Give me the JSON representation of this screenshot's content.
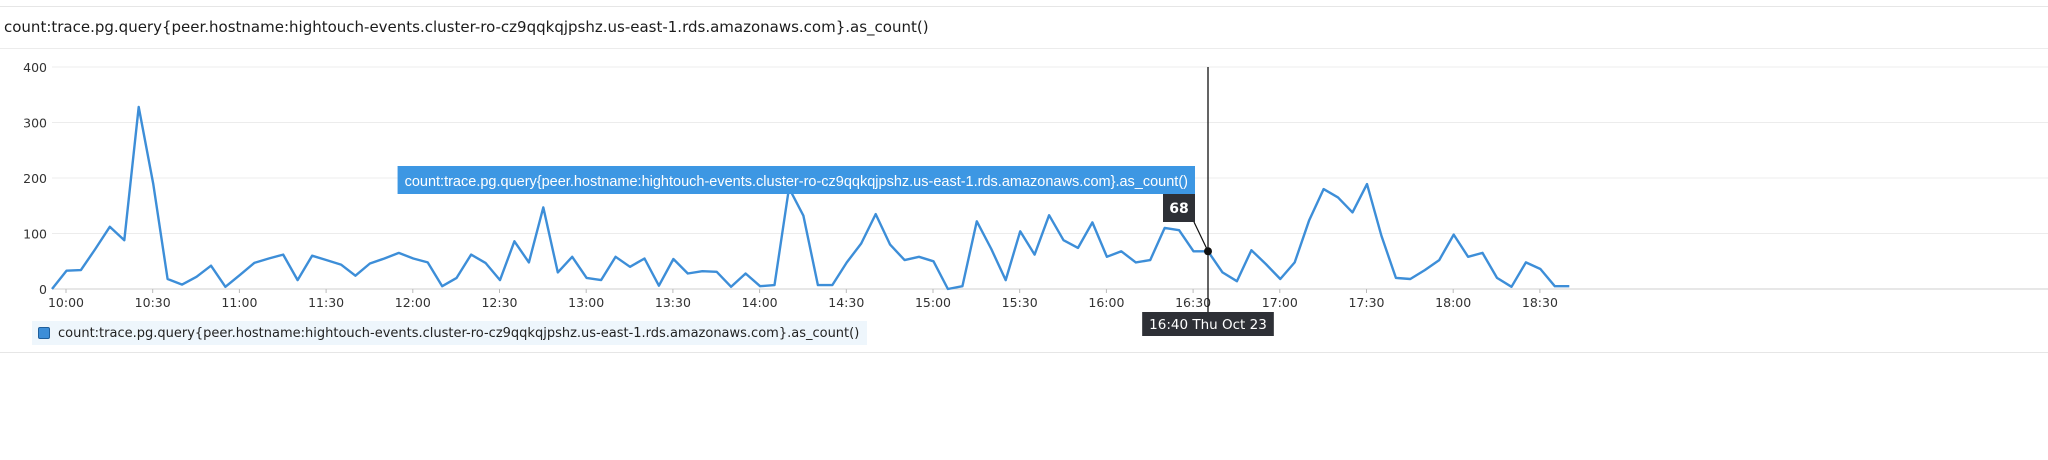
{
  "widget": {
    "title": "count:trace.pg.query{peer.hostname:hightouch-events.cluster-ro-cz9qqkqjpshz.us-east-1.rds.amazonaws.com}.as_count()"
  },
  "tooltip": {
    "series_label": "count:trace.pg.query{peer.hostname:hightouch-events.cluster-ro-cz9qqkqjpshz.us-east-1.rds.amazonaws.com}.as_count()",
    "value": "68",
    "time_label": "16:40 Thu Oct 23",
    "hover_time": "16:40"
  },
  "legend": {
    "items": [
      {
        "label": "count:trace.pg.query{peer.hostname:hightouch-events.cluster-ro-cz9qqkqjpshz.us-east-1.rds.amazonaws.com}.as_count()",
        "color": "#3d8ed8"
      }
    ]
  },
  "chart_data": {
    "type": "line",
    "title": "count:trace.pg.query{peer.hostname:hightouch-events.cluster-ro-cz9qqkqjpshz.us-east-1.rds.amazonaws.com}.as_count()",
    "xlabel": "",
    "ylabel": "",
    "x_start": "10:00",
    "x_step_minutes": 5,
    "ylim": [
      0,
      400
    ],
    "yticks": [
      0,
      100,
      200,
      300,
      400
    ],
    "xticks": [
      "10:00",
      "10:30",
      "11:00",
      "11:30",
      "12:00",
      "12:30",
      "13:00",
      "13:30",
      "14:00",
      "14:30",
      "15:00",
      "15:30",
      "16:00",
      "16:30",
      "17:00",
      "17:30",
      "18:00",
      "18:30"
    ],
    "grid": true,
    "legend_position": "bottom-left",
    "color": "#3d8ed8",
    "series": [
      {
        "values": [
          0,
          33,
          34,
          72,
          112,
          88,
          328,
          190,
          18,
          8,
          22,
          42,
          4,
          25,
          47,
          55,
          62,
          16,
          60,
          52,
          44,
          24,
          46,
          55,
          65,
          55,
          48,
          5,
          20,
          62,
          47,
          16,
          86,
          48,
          147,
          30,
          58,
          20,
          16,
          58,
          40,
          55,
          6,
          54,
          28,
          32,
          31,
          4,
          28,
          5,
          7,
          182,
          132,
          7,
          7,
          48,
          82,
          135,
          80,
          52,
          58,
          50,
          0,
          5,
          122,
          72,
          16,
          104,
          62,
          133,
          88,
          74,
          120,
          58,
          68,
          48,
          52,
          110,
          106,
          68,
          68,
          30,
          14,
          70,
          45,
          18,
          48,
          124,
          180,
          165,
          138,
          189,
          96,
          20,
          18,
          34,
          52,
          98,
          58,
          65,
          20,
          4,
          48,
          36,
          5,
          5
        ]
      }
    ]
  }
}
